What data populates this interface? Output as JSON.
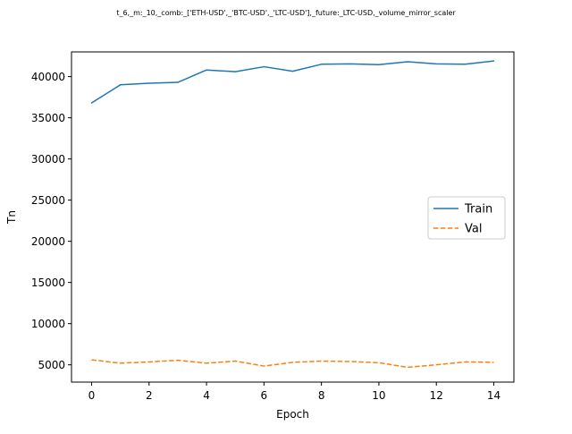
{
  "chart_data": {
    "type": "line",
    "title": "t_6,_m:_10,_comb:_['ETH-USD',_'BTC-USD',_'LTC-USD'],_future:_LTC-USD,_volume_mirror_scaler",
    "xlabel": "Epoch",
    "ylabel": "Tn",
    "xlim": [
      -0.7,
      14.7
    ],
    "ylim": [
      2900,
      43000
    ],
    "xticks": [
      0,
      2,
      4,
      6,
      8,
      10,
      12,
      14
    ],
    "yticks": [
      5000,
      10000,
      15000,
      20000,
      25000,
      30000,
      35000,
      40000
    ],
    "grid": false,
    "legend_position": "center-right",
    "x": [
      0,
      1,
      2,
      3,
      4,
      5,
      6,
      7,
      8,
      9,
      10,
      11,
      12,
      13,
      14
    ],
    "series": [
      {
        "name": "Train",
        "color": "#1f77b4",
        "style": "solid",
        "values": [
          36800,
          39000,
          39200,
          39300,
          40800,
          40600,
          41200,
          40650,
          41500,
          41550,
          41450,
          41800,
          41550,
          41500,
          41900
        ]
      },
      {
        "name": "Val",
        "color": "#ff7f0e",
        "style": "dashed",
        "values": [
          5600,
          5200,
          5350,
          5550,
          5200,
          5450,
          4850,
          5300,
          5450,
          5400,
          5250,
          4700,
          5000,
          5350,
          5300
        ]
      }
    ]
  }
}
